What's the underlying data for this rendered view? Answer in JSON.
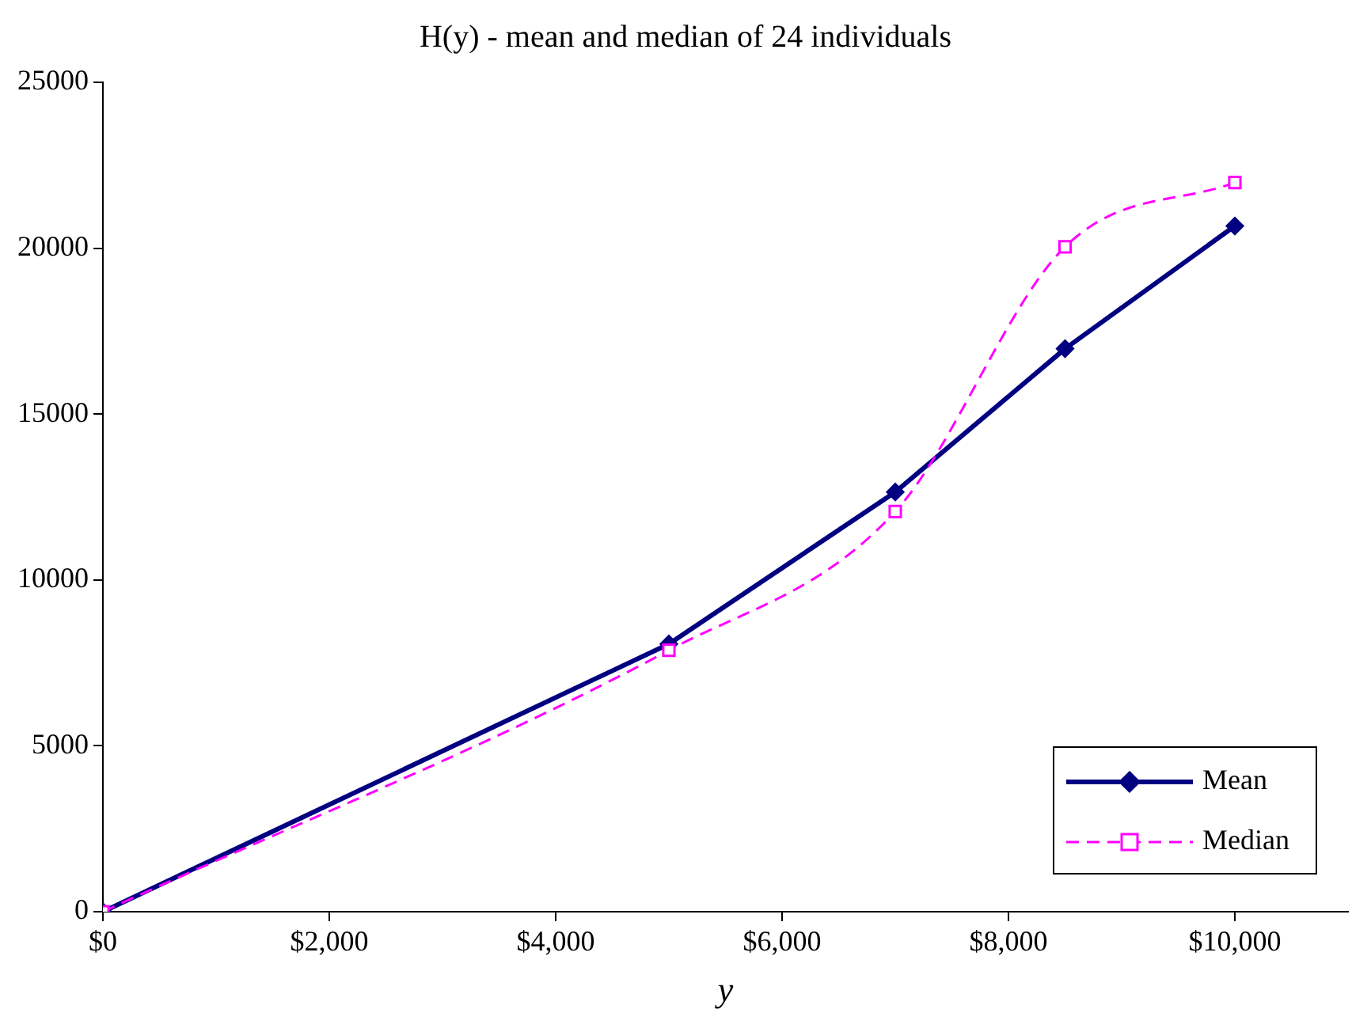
{
  "chart_data": {
    "type": "line",
    "title": "H(y) - mean and median of 24 individuals",
    "xlabel": "y",
    "xlim": [
      0,
      11000
    ],
    "xticks": [
      {
        "value": 0,
        "label": "$0"
      },
      {
        "value": 2000,
        "label": "$2,000"
      },
      {
        "value": 4000,
        "label": "$4,000"
      },
      {
        "value": 6000,
        "label": "$6,000"
      },
      {
        "value": 8000,
        "label": "$8,000"
      },
      {
        "value": 10000,
        "label": "$10,000"
      }
    ],
    "ylim": [
      0,
      25000
    ],
    "yticks": [
      0,
      5000,
      10000,
      15000,
      20000,
      25000
    ],
    "grid": false,
    "legend": "bottom right",
    "series": [
      {
        "name": "Mean",
        "color": "#000080",
        "x": [
          0,
          5000,
          7000,
          8500,
          10000
        ],
        "values": [
          0,
          8070,
          12650,
          16970,
          20670
        ],
        "marker": "diamond",
        "line_style": "solid"
      },
      {
        "name": "Median",
        "color": "#ff00ff",
        "x": [
          0,
          5000,
          7000,
          8500,
          10000
        ],
        "values": [
          0,
          7880,
          12060,
          20040,
          21980
        ],
        "marker": "square",
        "line_style": "dashed"
      }
    ]
  }
}
